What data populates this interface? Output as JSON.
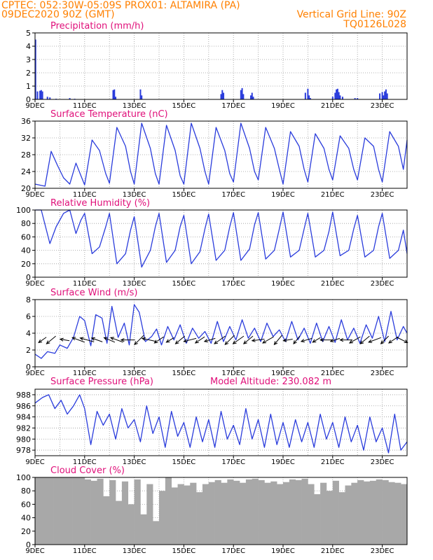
{
  "header": {
    "line1_left": "CPTEC:   052:30W-05:09S   PROX01: ALTAMIRA (PA)",
    "line2_left": "09DEC2020 90Z (GMT)",
    "grid_note": "Vertical Grid Line: 90Z",
    "code": "TQ0126L028"
  },
  "colors": {
    "header": "#ff8000",
    "title": "#e0107a",
    "series": "#2a3cdc",
    "cloud": "#a8a8a8",
    "wind_arrow": "#000000"
  },
  "chart_data": [
    {
      "type": "bar",
      "title": "Precipitation (mm/h)",
      "ylim": [
        0,
        5
      ],
      "yticks": [
        0,
        1,
        2,
        3,
        4,
        5
      ],
      "xlim": [
        9,
        24
      ],
      "xticks": [
        9,
        11,
        13,
        15,
        17,
        19,
        21,
        23
      ],
      "xtick_labels": [
        "9DEC",
        "11DEC",
        "13DEC",
        "15DEC",
        "17DEC",
        "19DEC",
        "21DEC",
        "23DEC"
      ],
      "x": [
        9.02,
        9.1,
        9.2,
        9.25,
        9.3,
        9.5,
        9.6,
        9.85,
        10.4,
        10.6,
        12.15,
        12.2,
        12.25,
        13.25,
        13.3,
        16.5,
        16.55,
        16.6,
        17.3,
        17.35,
        17.4,
        17.7,
        17.75,
        17.8,
        19.9,
        20.0,
        20.05,
        20.1,
        21.0,
        21.1,
        21.15,
        21.2,
        21.25,
        21.3,
        21.4,
        21.9,
        22.0,
        22.9,
        23.0,
        23.05,
        23.1,
        23.15,
        23.2
      ],
      "values": [
        4.5,
        0.6,
        0.65,
        0.7,
        0.6,
        0.2,
        0.15,
        0.05,
        0.1,
        0.05,
        0.7,
        0.75,
        0.2,
        0.75,
        0.3,
        0.4,
        0.7,
        0.5,
        0.7,
        0.85,
        0.4,
        0.3,
        0.5,
        0.2,
        0.5,
        0.8,
        0.3,
        0.1,
        0.2,
        0.5,
        0.75,
        0.8,
        0.55,
        0.3,
        0.2,
        0.1,
        0.1,
        0.45,
        0.55,
        0.3,
        0.6,
        0.75,
        0.45
      ]
    },
    {
      "type": "line",
      "title": "Surface Temperature (nC)",
      "ylim": [
        20,
        36
      ],
      "yticks": [
        20,
        24,
        28,
        32,
        36
      ],
      "xlim": [
        9,
        24
      ],
      "xticks": [
        9,
        11,
        13,
        15,
        17,
        19,
        21,
        23
      ],
      "xtick_labels": [
        "9DEC",
        "11DEC",
        "13DEC",
        "15DEC",
        "17DEC",
        "19DEC",
        "21DEC",
        "23DEC"
      ],
      "x": [
        9.0,
        9.4,
        9.65,
        9.9,
        10.15,
        10.4,
        10.65,
        10.85,
        11.0,
        11.3,
        11.6,
        11.85,
        12.0,
        12.3,
        12.65,
        12.85,
        13.0,
        13.3,
        13.65,
        13.85,
        14.0,
        14.3,
        14.65,
        14.85,
        15.0,
        15.3,
        15.65,
        15.85,
        16.0,
        16.3,
        16.65,
        16.85,
        17.0,
        17.3,
        17.65,
        17.85,
        18.0,
        18.3,
        18.65,
        18.85,
        19.0,
        19.3,
        19.65,
        19.85,
        20.0,
        20.3,
        20.65,
        20.85,
        21.0,
        21.3,
        21.65,
        21.85,
        22.0,
        22.3,
        22.65,
        22.85,
        23.0,
        23.3,
        23.65,
        23.85,
        24.0
      ],
      "values": [
        21.0,
        20.5,
        28.8,
        25.5,
        22.5,
        21.0,
        26.0,
        23.0,
        20.8,
        31.5,
        29.0,
        23.5,
        21.2,
        34.5,
        30.0,
        24.0,
        21.0,
        35.5,
        29.5,
        23.5,
        21.0,
        35.0,
        29.0,
        23.0,
        21.0,
        35.5,
        29.5,
        24.0,
        21.0,
        34.5,
        29.0,
        23.5,
        21.5,
        35.5,
        29.5,
        24.0,
        22.0,
        34.5,
        29.5,
        24.5,
        21.0,
        33.5,
        30.0,
        24.5,
        21.5,
        33.0,
        29.5,
        24.5,
        22.0,
        32.5,
        29.5,
        24.5,
        22.0,
        32.0,
        30.0,
        24.5,
        21.5,
        33.5,
        30.0,
        24.5,
        31.5
      ]
    },
    {
      "type": "line",
      "title": "Relative Humidity (%)",
      "ylim": [
        0,
        100
      ],
      "yticks": [
        0,
        20,
        40,
        60,
        80,
        100
      ],
      "xlim": [
        9,
        24
      ],
      "xticks": [
        9,
        11,
        13,
        15,
        17,
        19,
        21,
        23
      ],
      "xtick_labels": [
        "9DEC",
        "11DEC",
        "13DEC",
        "15DEC",
        "17DEC",
        "19DEC",
        "21DEC",
        "23DEC"
      ],
      "x": [
        9.0,
        9.25,
        9.6,
        9.85,
        10.15,
        10.4,
        10.65,
        10.85,
        11.0,
        11.3,
        11.6,
        11.85,
        12.0,
        12.3,
        12.65,
        12.85,
        13.0,
        13.3,
        13.65,
        13.85,
        14.0,
        14.3,
        14.65,
        14.85,
        15.0,
        15.3,
        15.65,
        15.85,
        16.0,
        16.3,
        16.65,
        16.85,
        17.0,
        17.3,
        17.65,
        17.85,
        18.0,
        18.3,
        18.65,
        18.85,
        19.0,
        19.3,
        19.65,
        19.85,
        20.0,
        20.3,
        20.65,
        20.85,
        21.0,
        21.3,
        21.65,
        21.85,
        22.0,
        22.3,
        22.65,
        22.85,
        23.0,
        23.3,
        23.65,
        23.85,
        24.0
      ],
      "values": [
        100,
        100,
        50,
        75,
        95,
        100,
        65,
        85,
        95,
        35,
        45,
        75,
        95,
        20,
        35,
        70,
        90,
        15,
        40,
        75,
        95,
        22,
        40,
        75,
        92,
        20,
        38,
        72,
        94,
        25,
        40,
        75,
        96,
        25,
        42,
        78,
        96,
        27,
        40,
        72,
        97,
        30,
        40,
        72,
        95,
        30,
        40,
        68,
        97,
        32,
        40,
        72,
        92,
        30,
        40,
        75,
        95,
        28,
        40,
        70,
        35
      ]
    },
    {
      "type": "line",
      "title": "Surface Wind (m/s)",
      "ylim": [
        0,
        8
      ],
      "yticks": [
        0,
        2,
        4,
        6,
        8
      ],
      "xlim": [
        9,
        24
      ],
      "xticks": [
        9,
        11,
        13,
        15,
        17,
        19,
        21,
        23
      ],
      "xtick_labels": [
        "9DEC",
        "11DEC",
        "13DEC",
        "15DEC",
        "17DEC",
        "19DEC",
        "21DEC",
        "23DEC"
      ],
      "x": [
        9.0,
        9.25,
        9.5,
        9.8,
        10.0,
        10.3,
        10.55,
        10.8,
        11.0,
        11.25,
        11.45,
        11.7,
        11.9,
        12.1,
        12.35,
        12.6,
        12.8,
        13.0,
        13.2,
        13.45,
        13.7,
        13.9,
        14.1,
        14.35,
        14.6,
        14.85,
        15.1,
        15.35,
        15.6,
        15.85,
        16.1,
        16.35,
        16.6,
        16.85,
        17.1,
        17.35,
        17.6,
        17.85,
        18.1,
        18.35,
        18.6,
        18.85,
        19.1,
        19.35,
        19.6,
        19.85,
        20.1,
        20.35,
        20.6,
        20.85,
        21.1,
        21.35,
        21.6,
        21.85,
        22.1,
        22.35,
        22.6,
        22.85,
        23.1,
        23.35,
        23.6,
        23.85,
        24.0
      ],
      "values": [
        1.5,
        1.0,
        1.8,
        1.6,
        2.6,
        2.2,
        3.5,
        6.0,
        5.5,
        2.5,
        6.2,
        5.8,
        2.8,
        7.2,
        3.5,
        5.2,
        2.6,
        7.4,
        6.5,
        3.0,
        3.6,
        4.5,
        2.6,
        4.8,
        3.2,
        5.0,
        2.8,
        4.6,
        3.4,
        4.2,
        2.8,
        5.4,
        3.0,
        4.8,
        3.2,
        5.6,
        3.4,
        4.6,
        3.0,
        5.2,
        3.6,
        4.4,
        3.0,
        5.4,
        3.2,
        4.6,
        2.8,
        5.2,
        3.0,
        4.8,
        2.9,
        5.6,
        3.2,
        4.6,
        2.8,
        5.0,
        3.4,
        6.0,
        3.0,
        6.6,
        3.2,
        4.8,
        4.0
      ],
      "wind_vector_x": [
        9.3,
        9.65,
        10.2,
        10.75,
        11.1,
        11.5,
        12.0,
        12.3,
        12.75,
        13.2,
        13.6,
        14.0,
        14.45,
        14.85,
        15.25,
        15.65,
        16.05,
        16.45,
        16.85,
        17.2,
        17.6,
        18.0,
        18.4,
        18.8,
        19.2,
        19.55,
        19.95,
        20.35,
        20.75,
        21.1,
        21.55,
        21.9,
        22.3,
        22.7,
        23.1,
        23.45,
        23.8
      ],
      "wind_vector_u": [
        -0.5,
        -0.6,
        -0.6,
        -0.8,
        -0.9,
        -0.7,
        -0.7,
        -0.8,
        -0.9,
        -0.6,
        -0.9,
        -0.6,
        -0.5,
        -0.6,
        -0.8,
        -0.6,
        -0.7,
        -0.7,
        -0.6,
        -0.7,
        -0.6,
        -0.8,
        -0.7,
        -0.5,
        -0.6,
        -0.4,
        -0.7,
        -0.5,
        -0.8,
        -0.6,
        -0.8,
        -0.7,
        -0.6,
        -0.8,
        -0.5,
        -0.6,
        0.7
      ],
      "wind_vector_v": [
        -0.35,
        -0.5,
        0.1,
        0.3,
        0.25,
        0.25,
        0.3,
        0.3,
        0.0,
        -0.6,
        0.2,
        -0.4,
        -0.3,
        -0.5,
        -0.2,
        -0.4,
        -0.2,
        -0.5,
        -0.6,
        -0.5,
        -0.5,
        -0.1,
        -0.4,
        -0.6,
        -0.1,
        -0.5,
        -0.2,
        -0.3,
        0.0,
        -0.2,
        0.0,
        -0.4,
        -0.5,
        -0.3,
        -0.5,
        -0.4,
        -0.35
      ]
    },
    {
      "type": "line",
      "title": "Surface Pressure (hPa)",
      "annotation": "Model Altitude: 230.082 m",
      "ylim": [
        977,
        989
      ],
      "yticks": [
        978,
        980,
        982,
        984,
        986,
        988
      ],
      "xlim": [
        9,
        24
      ],
      "xticks": [
        9,
        11,
        13,
        15,
        17,
        19,
        21,
        23
      ],
      "xtick_labels": [
        "9DEC",
        "11DEC",
        "13DEC",
        "15DEC",
        "17DEC",
        "19DEC",
        "21DEC",
        "23DEC"
      ],
      "x": [
        9.0,
        9.3,
        9.55,
        9.8,
        10.05,
        10.3,
        10.55,
        10.8,
        11.0,
        11.25,
        11.5,
        11.75,
        12.0,
        12.25,
        12.5,
        12.75,
        13.0,
        13.25,
        13.5,
        13.75,
        14.0,
        14.25,
        14.5,
        14.75,
        15.0,
        15.25,
        15.5,
        15.75,
        16.0,
        16.25,
        16.5,
        16.75,
        17.0,
        17.25,
        17.5,
        17.75,
        18.0,
        18.25,
        18.5,
        18.75,
        19.0,
        19.25,
        19.5,
        19.75,
        20.0,
        20.25,
        20.5,
        20.75,
        21.0,
        21.25,
        21.5,
        21.75,
        22.0,
        22.25,
        22.5,
        22.75,
        23.0,
        23.25,
        23.5,
        23.75,
        24.0
      ],
      "values": [
        986.5,
        987.5,
        988.0,
        985.5,
        987.0,
        984.5,
        986.0,
        988.0,
        985.5,
        979.0,
        985.0,
        982.5,
        984.5,
        980.0,
        985.5,
        982.0,
        983.5,
        979.5,
        986.0,
        981.0,
        984.0,
        978.5,
        985.0,
        980.5,
        983.0,
        978.5,
        984.0,
        979.5,
        983.5,
        978.5,
        985.0,
        980.0,
        982.5,
        979.0,
        985.5,
        980.0,
        983.5,
        978.5,
        984.5,
        979.0,
        983.0,
        978.5,
        983.5,
        979.5,
        983.0,
        978.5,
        984.5,
        980.0,
        983.0,
        978.5,
        984.0,
        979.5,
        982.5,
        978.0,
        984.0,
        979.5,
        982.0,
        977.5,
        984.5,
        978.0,
        979.5
      ]
    },
    {
      "type": "bar",
      "title": "Cloud Cover (%)",
      "ylim": [
        0,
        100
      ],
      "yticks": [
        0,
        20,
        40,
        60,
        80,
        100
      ],
      "xlim": [
        9,
        24
      ],
      "xticks": [
        9,
        11,
        13,
        15,
        17,
        19,
        21,
        23
      ],
      "xtick_labels": [
        "9DEC",
        "11DEC",
        "13DEC",
        "15DEC",
        "17DEC",
        "19DEC",
        "21DEC",
        "23DEC"
      ],
      "x": [
        9.0,
        9.25,
        9.5,
        9.75,
        10.0,
        10.25,
        10.5,
        10.75,
        11.0,
        11.25,
        11.5,
        11.75,
        12.0,
        12.25,
        12.5,
        12.75,
        13.0,
        13.25,
        13.5,
        13.75,
        14.0,
        14.25,
        14.5,
        14.75,
        15.0,
        15.25,
        15.5,
        15.75,
        16.0,
        16.25,
        16.5,
        16.75,
        17.0,
        17.25,
        17.5,
        17.75,
        18.0,
        18.25,
        18.5,
        18.75,
        19.0,
        19.25,
        19.5,
        19.75,
        20.0,
        20.25,
        20.5,
        20.75,
        21.0,
        21.25,
        21.5,
        21.75,
        22.0,
        22.25,
        22.5,
        22.75,
        23.0,
        23.25,
        23.5,
        23.75
      ],
      "values": [
        100,
        100,
        100,
        100,
        100,
        100,
        100,
        100,
        97,
        95,
        98,
        72,
        96,
        65,
        94,
        60,
        97,
        45,
        90,
        35,
        80,
        100,
        85,
        90,
        88,
        92,
        78,
        90,
        93,
        96,
        92,
        97,
        95,
        92,
        97,
        98,
        96,
        92,
        94,
        90,
        93,
        97,
        96,
        98,
        90,
        75,
        92,
        80,
        95,
        78,
        88,
        92,
        96,
        94,
        95,
        97,
        96,
        93,
        92,
        90
      ]
    }
  ]
}
